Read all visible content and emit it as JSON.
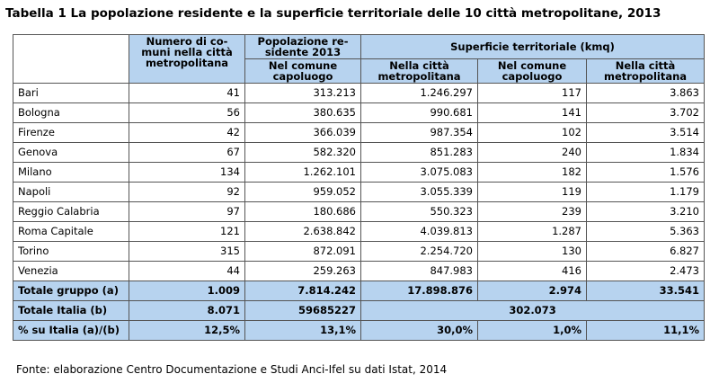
{
  "title": "Tabella 1 La popolazione residente e la superficie territoriale delle 10 città metropolitane, 2013",
  "headers": {
    "comuni": [
      "Numero di co-",
      "muni nella città",
      "metropolitana"
    ],
    "pop_top": [
      "Popolazione re-",
      "sidente 2013"
    ],
    "pop_sub": [
      "Nel comune",
      "capoluogo"
    ],
    "superficie": "Superficie territoriale (kmq)",
    "sup_citta_1": [
      "Nella città",
      "metropolitana"
    ],
    "sup_comune": [
      "Nel comune",
      "capoluogo"
    ],
    "sup_citta_2": [
      "Nella città",
      "metropolitana"
    ]
  },
  "rows": [
    {
      "name": "Bari",
      "comuni": "41",
      "pop_comune": "313.213",
      "pop_citta": "1.246.297",
      "sup_comune": "117",
      "sup_citta": "3.863"
    },
    {
      "name": "Bologna",
      "comuni": "56",
      "pop_comune": "380.635",
      "pop_citta": "990.681",
      "sup_comune": "141",
      "sup_citta": "3.702"
    },
    {
      "name": "Firenze",
      "comuni": "42",
      "pop_comune": "366.039",
      "pop_citta": "987.354",
      "sup_comune": "102",
      "sup_citta": "3.514"
    },
    {
      "name": "Genova",
      "comuni": "67",
      "pop_comune": "582.320",
      "pop_citta": "851.283",
      "sup_comune": "240",
      "sup_citta": "1.834"
    },
    {
      "name": "Milano",
      "comuni": "134",
      "pop_comune": "1.262.101",
      "pop_citta": "3.075.083",
      "sup_comune": "182",
      "sup_citta": "1.576"
    },
    {
      "name": "Napoli",
      "comuni": "92",
      "pop_comune": "959.052",
      "pop_citta": "3.055.339",
      "sup_comune": "119",
      "sup_citta": "1.179"
    },
    {
      "name": "Reggio Calabria",
      "comuni": "97",
      "pop_comune": "180.686",
      "pop_citta": "550.323",
      "sup_comune": "239",
      "sup_citta": "3.210"
    },
    {
      "name": "Roma Capitale",
      "comuni": "121",
      "pop_comune": "2.638.842",
      "pop_citta": "4.039.813",
      "sup_comune": "1.287",
      "sup_citta": "5.363"
    },
    {
      "name": "Torino",
      "comuni": "315",
      "pop_comune": "872.091",
      "pop_citta": "2.254.720",
      "sup_comune": "130",
      "sup_citta": "6.827"
    },
    {
      "name": "Venezia",
      "comuni": "44",
      "pop_comune": "259.263",
      "pop_citta": "847.983",
      "sup_comune": "416",
      "sup_citta": "2.473"
    }
  ],
  "totale_gruppo": {
    "name": "Totale gruppo (a)",
    "comuni": "1.009",
    "pop_comune": "7.814.242",
    "pop_citta": "17.898.876",
    "sup_comune": "2.974",
    "sup_citta": "33.541"
  },
  "totale_italia": {
    "name": "Totale Italia (b)",
    "comuni": "8.071",
    "pop_comune": "59685227",
    "pop_citta": "302.073"
  },
  "percentuale": {
    "name": "% su Italia (a)/(b)",
    "comuni": "12,5%",
    "pop_comune": "13,1%",
    "pop_citta": "30,0%",
    "sup_comune": "1,0%",
    "sup_citta": "11,1%"
  },
  "source": "Fonte: elaborazione Centro Documentazione e Studi Anci-Ifel su dati Istat, 2014"
}
